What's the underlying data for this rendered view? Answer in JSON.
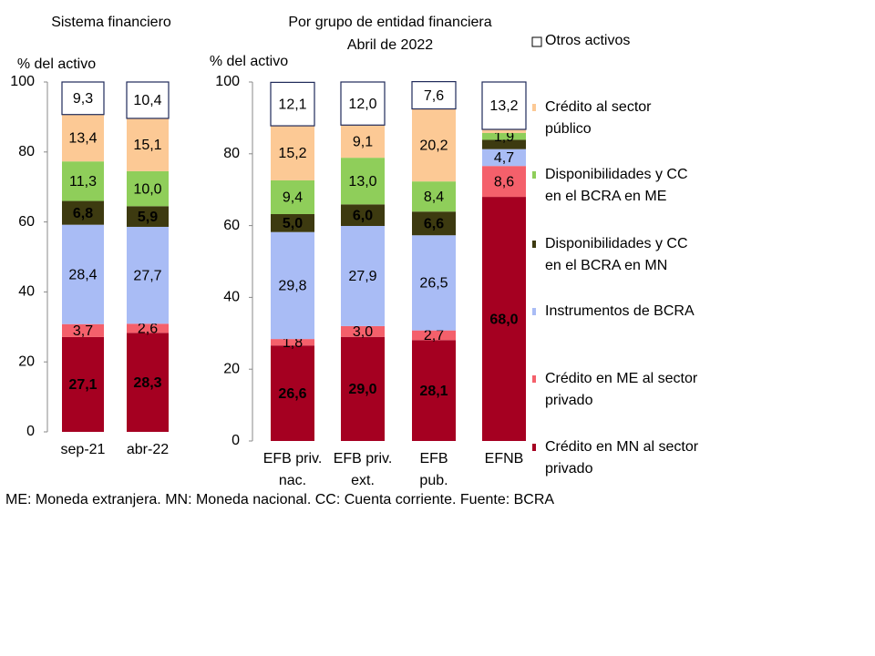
{
  "chart_data": [
    {
      "type": "stacked_bar",
      "title": "Sistema financiero",
      "ylabel": "% del activo",
      "categories": [
        "sep-21",
        "abr-22"
      ],
      "ylim": [
        0,
        100
      ],
      "yticks": [
        0,
        20,
        40,
        60,
        80,
        100
      ],
      "series": [
        {
          "color": "#a50021",
          "values": [
            27.1,
            28.3
          ],
          "value_labels": [
            "27,1",
            "28,3"
          ]
        },
        {
          "color": "#f4606b",
          "values": [
            3.7,
            2.6
          ],
          "value_labels": [
            "3,7",
            "2,6"
          ]
        },
        {
          "color": "#a9bcf5",
          "values": [
            28.4,
            27.7
          ],
          "value_labels": [
            "28,4",
            "27,7"
          ]
        },
        {
          "color": "#3d3a10",
          "values": [
            6.8,
            5.9
          ],
          "value_labels": [
            "6,8",
            "5,9"
          ]
        },
        {
          "color": "#8fce5a",
          "values": [
            11.3,
            10.0
          ],
          "value_labels": [
            "11,3",
            "10,0"
          ]
        },
        {
          "color": "#fcc995",
          "values": [
            13.4,
            15.1
          ],
          "value_labels": [
            "13,4",
            "15,1"
          ]
        },
        {
          "color": "#ffffff",
          "values": [
            9.3,
            10.4
          ],
          "value_labels": [
            "9,3",
            "10,4"
          ]
        }
      ]
    },
    {
      "type": "stacked_bar",
      "title": "Por grupo de entidad financiera",
      "subtitle": "Abril de 2022",
      "ylabel": "% del activo",
      "categories": [
        "EFB priv.\nnac.",
        "EFB priv.\next.",
        "EFB\npub.",
        "EFNB"
      ],
      "ylim": [
        0,
        100
      ],
      "yticks": [
        0,
        20,
        40,
        60,
        80,
        100
      ],
      "series": [
        {
          "name": "Crédito en MN al sector\nprivado",
          "color": "#a50021",
          "values": [
            26.6,
            29.0,
            28.1,
            68.0
          ],
          "value_labels": [
            "26,6",
            "29,0",
            "28,1",
            "68,0"
          ]
        },
        {
          "name": "Crédito en ME al sector\nprivado",
          "color": "#f4606b",
          "values": [
            1.8,
            3.0,
            2.7,
            8.6
          ],
          "value_labels": [
            "1,8",
            "3,0",
            "2,7",
            "8,6"
          ]
        },
        {
          "name": "Instrumentos de BCRA",
          "color": "#a9bcf5",
          "values": [
            29.8,
            27.9,
            26.5,
            4.7
          ],
          "value_labels": [
            "29,8",
            "27,9",
            "26,5",
            "4,7"
          ]
        },
        {
          "name": "Disponibilidades y CC\nen el BCRA en MN",
          "color": "#3d3a10",
          "values": [
            5.0,
            6.0,
            6.6,
            2.6
          ],
          "value_labels": [
            "5,0",
            "6,0",
            "6,6",
            null
          ]
        },
        {
          "name": "Disponibilidades y CC\nen el BCRA en ME",
          "color": "#8fce5a",
          "values": [
            9.4,
            13.0,
            8.4,
            1.9
          ],
          "value_labels": [
            "9,4",
            "13,0",
            "8,4",
            "1,9"
          ]
        },
        {
          "name": "Crédito al sector\npúblico",
          "color": "#fcc995",
          "values": [
            15.2,
            9.1,
            20.2,
            1.0
          ],
          "value_labels": [
            "15,2",
            "9,1",
            "20,2",
            null
          ]
        },
        {
          "name": "Otros activos",
          "color": "#ffffff",
          "values": [
            12.1,
            12.0,
            7.6,
            13.2
          ],
          "value_labels": [
            "12,1",
            "12,0",
            "7,6",
            "13,2"
          ]
        }
      ]
    }
  ],
  "note": "ME: Moneda extranjera. MN: Moneda nacional. CC: Cuenta corriente. Fuente: BCRA"
}
